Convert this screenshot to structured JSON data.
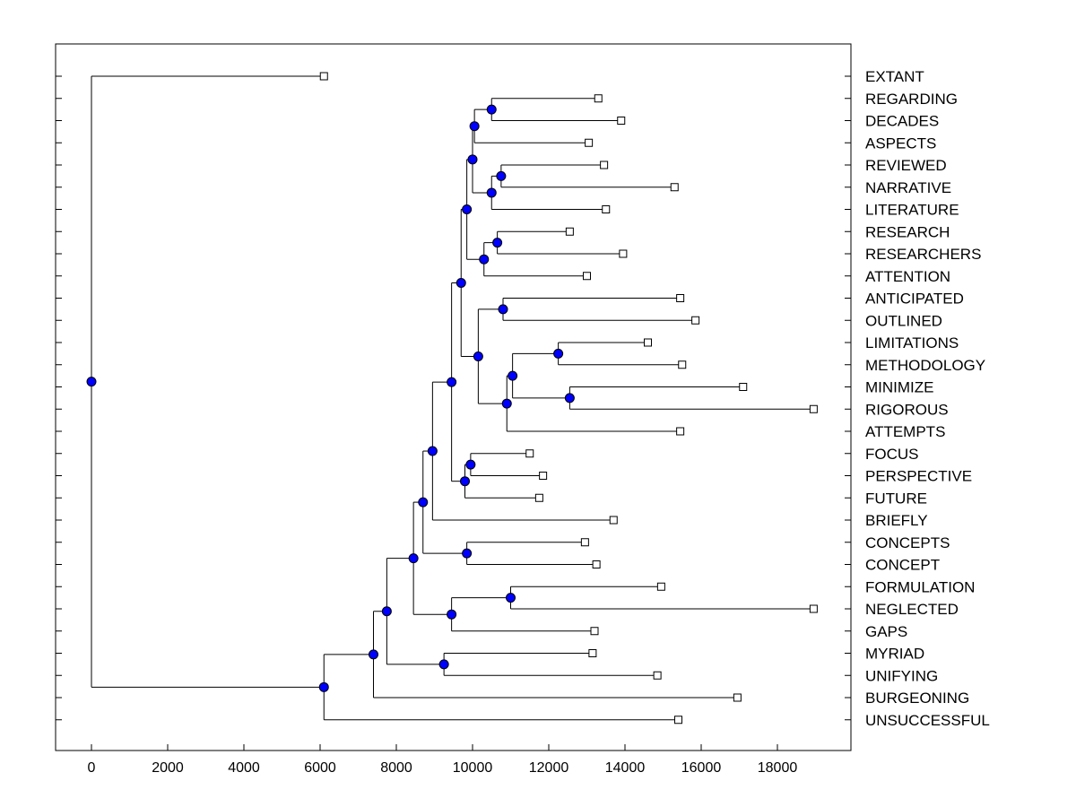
{
  "chart_data": {
    "type": "dendrogram",
    "title": "",
    "xlabel": "",
    "ylabel": "",
    "xlim": [
      -900,
      19500
    ],
    "xticks": [
      0,
      2000,
      4000,
      6000,
      8000,
      10000,
      12000,
      14000,
      16000,
      18000
    ],
    "xtick_labels": [
      "0",
      "2000",
      "4000",
      "6000",
      "8000",
      "10000",
      "12000",
      "14000",
      "16000",
      "18000"
    ],
    "node_color": "#0000ff",
    "leaves": [
      {
        "label": "EXTANT",
        "value": 6100
      },
      {
        "label": "REGARDING",
        "value": 13300
      },
      {
        "label": "DECADES",
        "value": 13900
      },
      {
        "label": "ASPECTS",
        "value": 13050
      },
      {
        "label": "REVIEWED",
        "value": 13450
      },
      {
        "label": "NARRATIVE",
        "value": 15300
      },
      {
        "label": "LITERATURE",
        "value": 13500
      },
      {
        "label": "RESEARCH",
        "value": 12550
      },
      {
        "label": "RESEARCHERS",
        "value": 13950
      },
      {
        "label": "ATTENTION",
        "value": 13000
      },
      {
        "label": "ANTICIPATED",
        "value": 15450
      },
      {
        "label": "OUTLINED",
        "value": 15850
      },
      {
        "label": "LIMITATIONS",
        "value": 14600
      },
      {
        "label": "METHODOLOGY",
        "value": 15500
      },
      {
        "label": "MINIMIZE",
        "value": 17100
      },
      {
        "label": "RIGOROUS",
        "value": 18950
      },
      {
        "label": "ATTEMPTS",
        "value": 15450
      },
      {
        "label": "FOCUS",
        "value": 11500
      },
      {
        "label": "PERSPECTIVE",
        "value": 11850
      },
      {
        "label": "FUTURE",
        "value": 11750
      },
      {
        "label": "BRIEFLY",
        "value": 13700
      },
      {
        "label": "CONCEPTS",
        "value": 12950
      },
      {
        "label": "CONCEPT",
        "value": 13250
      },
      {
        "label": "FORMULATION",
        "value": 14950
      },
      {
        "label": "NEGLECTED",
        "value": 18950
      },
      {
        "label": "GAPS",
        "value": 13200
      },
      {
        "label": "MYRIAD",
        "value": 13150
      },
      {
        "label": "UNIFYING",
        "value": 14850
      },
      {
        "label": "BURGEONING",
        "value": 16950
      },
      {
        "label": "UNSUCCESSFUL",
        "value": 15400
      }
    ],
    "merges": [
      {
        "id": "A",
        "value": 10500,
        "children": [
          1,
          2
        ]
      },
      {
        "id": "B",
        "value": 10050,
        "children": [
          "A",
          3
        ]
      },
      {
        "id": "C",
        "value": 10750,
        "children": [
          4,
          5
        ]
      },
      {
        "id": "D",
        "value": 10500,
        "children": [
          "C",
          6
        ]
      },
      {
        "id": "E",
        "value": 10000,
        "children": [
          "B",
          "D"
        ]
      },
      {
        "id": "F",
        "value": 10650,
        "children": [
          7,
          8
        ]
      },
      {
        "id": "G",
        "value": 10300,
        "children": [
          "F",
          9
        ]
      },
      {
        "id": "H",
        "value": 9850,
        "children": [
          "E",
          "G"
        ]
      },
      {
        "id": "I",
        "value": 10800,
        "children": [
          10,
          11
        ]
      },
      {
        "id": "J",
        "value": 12250,
        "children": [
          12,
          13
        ]
      },
      {
        "id": "K",
        "value": 12550,
        "children": [
          14,
          15
        ]
      },
      {
        "id": "L",
        "value": 11050,
        "children": [
          "J",
          "K"
        ]
      },
      {
        "id": "M",
        "value": 10900,
        "children": [
          "L",
          16
        ]
      },
      {
        "id": "N",
        "value": 10150,
        "children": [
          "I",
          "M"
        ]
      },
      {
        "id": "O",
        "value": 9700,
        "children": [
          "H",
          "N"
        ]
      },
      {
        "id": "P",
        "value": 9950,
        "children": [
          17,
          18
        ]
      },
      {
        "id": "Q",
        "value": 9800,
        "children": [
          "P",
          19
        ]
      },
      {
        "id": "R",
        "value": 9450,
        "children": [
          "O",
          "Q"
        ]
      },
      {
        "id": "S",
        "value": 8950,
        "children": [
          "R",
          20
        ]
      },
      {
        "id": "T",
        "value": 9850,
        "children": [
          21,
          22
        ]
      },
      {
        "id": "U",
        "value": 8700,
        "children": [
          "S",
          "T"
        ]
      },
      {
        "id": "V",
        "value": 11000,
        "children": [
          23,
          24
        ]
      },
      {
        "id": "W",
        "value": 9450,
        "children": [
          "V",
          25
        ]
      },
      {
        "id": "X",
        "value": 8450,
        "children": [
          "U",
          "W"
        ]
      },
      {
        "id": "Y",
        "value": 9250,
        "children": [
          26,
          27
        ]
      },
      {
        "id": "Z",
        "value": 7750,
        "children": [
          "X",
          "Y"
        ]
      },
      {
        "id": "AA",
        "value": 7400,
        "children": [
          "Z",
          28
        ]
      },
      {
        "id": "AB",
        "value": 6100,
        "children": [
          "AA",
          29
        ]
      },
      {
        "id": "ROOT",
        "value": 0,
        "children": [
          0,
          "AB"
        ]
      }
    ]
  }
}
